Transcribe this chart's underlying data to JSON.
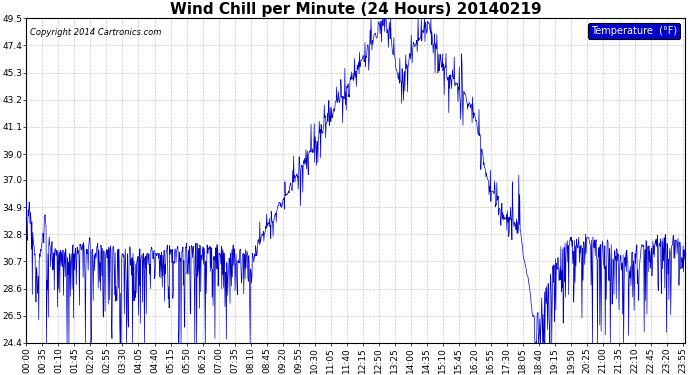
{
  "title": "Wind Chill per Minute (24 Hours) 20140219",
  "copyright_text": "Copyright 2014 Cartronics.com",
  "legend_label": "Temperature  (°F)",
  "ylim": [
    24.4,
    49.5
  ],
  "yticks": [
    24.4,
    26.5,
    28.6,
    30.7,
    32.8,
    34.9,
    37.0,
    39.0,
    41.1,
    43.2,
    45.3,
    47.4,
    49.5
  ],
  "line_color": "#0000CC",
  "background_color": "#ffffff",
  "grid_color": "#bbbbbb",
  "title_fontsize": 11,
  "tick_fontsize": 6.5,
  "total_minutes": 1440,
  "xtick_labels": [
    "00:00",
    "00:35",
    "01:10",
    "01:45",
    "02:20",
    "02:55",
    "03:30",
    "04:05",
    "04:40",
    "05:15",
    "05:50",
    "06:25",
    "07:00",
    "07:35",
    "08:10",
    "08:45",
    "09:20",
    "09:55",
    "10:30",
    "11:05",
    "11:40",
    "12:15",
    "12:50",
    "13:25",
    "14:00",
    "14:35",
    "15:10",
    "15:45",
    "16:20",
    "16:55",
    "17:30",
    "18:05",
    "18:40",
    "19:15",
    "19:50",
    "20:25",
    "21:00",
    "21:35",
    "22:10",
    "22:45",
    "23:20",
    "23:55"
  ]
}
